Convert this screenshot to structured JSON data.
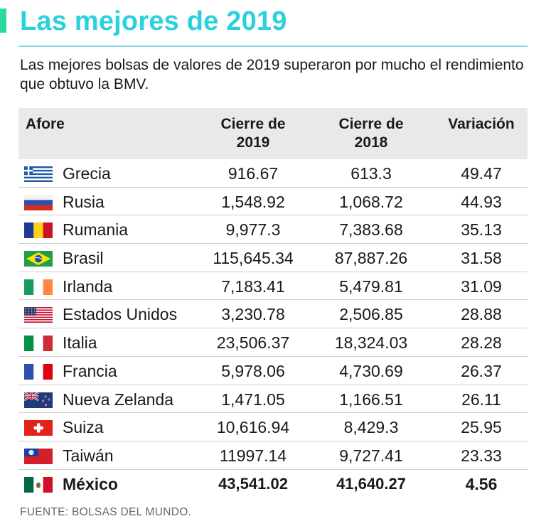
{
  "title": "Las mejores de 2019",
  "subtitle": "Las mejores bolsas de valores de 2019 superaron por mucho el rendimiento que obtuvo la BMV.",
  "colors": {
    "accent": "#2bd99a",
    "title": "#2bd0de",
    "header_bg": "#e9e9e9"
  },
  "chart_data": {
    "type": "table",
    "columns": [
      "Afore",
      "Cierre de 2019",
      "Cierre de 2018",
      "Variación"
    ],
    "rows": [
      {
        "country": "Grecia",
        "flag": "greece-flag-icon",
        "c2019": "916.67",
        "c2018": "613.3",
        "var": "49.47"
      },
      {
        "country": "Rusia",
        "flag": "russia-flag-icon",
        "c2019": "1,548.92",
        "c2018": "1,068.72",
        "var": "44.93"
      },
      {
        "country": "Rumania",
        "flag": "romania-flag-icon",
        "c2019": "9,977.3",
        "c2018": "7,383.68",
        "var": "35.13"
      },
      {
        "country": "Brasil",
        "flag": "brazil-flag-icon",
        "c2019": "115,645.34",
        "c2018": "87,887.26",
        "var": "31.58"
      },
      {
        "country": "Irlanda",
        "flag": "ireland-flag-icon",
        "c2019": "7,183.41",
        "c2018": "5,479.81",
        "var": "31.09"
      },
      {
        "country": "Estados Unidos",
        "flag": "usa-flag-icon",
        "c2019": "3,230.78",
        "c2018": "2,506.85",
        "var": "28.88"
      },
      {
        "country": "Italia",
        "flag": "italy-flag-icon",
        "c2019": "23,506.37",
        "c2018": "18,324.03",
        "var": "28.28"
      },
      {
        "country": "Francia",
        "flag": "france-flag-icon",
        "c2019": "5,978.06",
        "c2018": "4,730.69",
        "var": "26.37"
      },
      {
        "country": "Nueva Zelanda",
        "flag": "new-zealand-flag-icon",
        "c2019": "1,471.05",
        "c2018": "1,166.51",
        "var": "26.11"
      },
      {
        "country": "Suiza",
        "flag": "switzerland-flag-icon",
        "c2019": "10,616.94",
        "c2018": "8,429.3",
        "var": "25.95"
      },
      {
        "country": "Taiwán",
        "flag": "taiwan-flag-icon",
        "c2019": "11997.14",
        "c2018": "9,727.41",
        "var": "23.33"
      },
      {
        "country": "México",
        "flag": "mexico-flag-icon",
        "c2019": "43,541.02",
        "c2018": "41,640.27",
        "var": "4.56",
        "highlight": true
      }
    ]
  },
  "header": {
    "col0": "Afore",
    "col1_a": "Cierre de",
    "col1_b": "2019",
    "col2_a": "Cierre de",
    "col2_b": "2018",
    "col3": "Variación"
  },
  "source": "FUENTE: BOLSAS DEL MUNDO."
}
